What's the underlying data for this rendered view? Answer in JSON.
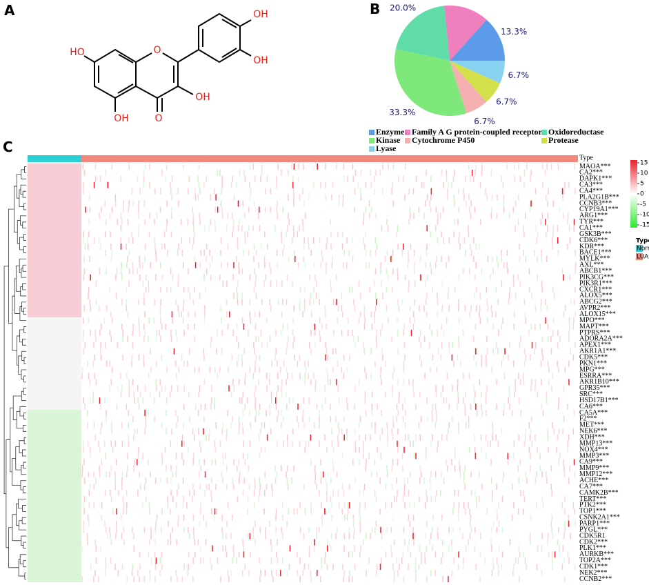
{
  "panels": [
    "A",
    "B",
    "C"
  ],
  "structure": {
    "atoms": [
      "HO",
      "OH",
      "O",
      "OH",
      "O",
      "OH",
      "OH"
    ]
  },
  "chart_data": {
    "type": "pie",
    "categories": [
      "Enzyme",
      "Family A G protein-coupled receptor",
      "Oxidoreductase",
      "Kinase",
      "Cytochrome P450",
      "Protease",
      "Lyase"
    ],
    "values": [
      13.3,
      13.3,
      20.0,
      33.3,
      6.7,
      6.7,
      6.7
    ],
    "value_labels": [
      "13.3%",
      "13.3%",
      "20.0%",
      "33.3%",
      "6.7%",
      "6.7%",
      "6.7%"
    ],
    "colors": [
      "#5b9bea",
      "#ef7fbf",
      "#5fdca8",
      "#7fe87a",
      "#f4b0b0",
      "#d4e04a",
      "#87d2f0"
    ]
  },
  "heatmap": {
    "annotation_label": "Type",
    "rows": [
      "MAOA***",
      "CA2***",
      "DAPK1***",
      "CA3***",
      "CA4***",
      "PLA2G1B***",
      "CCNB3***",
      "CYP19A1***",
      "ARG1***",
      "TYR***",
      "CA1***",
      "GSK3B***",
      "CDK6***",
      "KDR***",
      "BACE1***",
      "MYLK***",
      "AXL***",
      "ABCB1***",
      "PIK3CG***",
      "PIK3R1***",
      "CXCR1***",
      "ALOX5***",
      "ABCG2***",
      "AVPR2***",
      "ALOX15***",
      "MPO***",
      "MAPT***",
      "PTPRS***",
      "ADORA2A***",
      "APEX1***",
      "AKR1A1***",
      "CDK5***",
      "PKN1***",
      "MPG***",
      "ESRRA***",
      "AKR1B10***",
      "GPR35***",
      "SRC***",
      "HSD17B1***",
      "CA6***",
      "CA5A***",
      "F2***",
      "MET***",
      "NEK6***",
      "XDH***",
      "MMP13***",
      "NOX4***",
      "MMP3***",
      "CA9***",
      "MMP9***",
      "MMP12***",
      "ACHE***",
      "CA7***",
      "CAMK2B***",
      "TERT***",
      "PTK2***",
      "TOP1***",
      "CSNK2A1***",
      "PARP1***",
      "PYGL***",
      "CDK5R1",
      "CDK2***",
      "PLK1***",
      "AURKB***",
      "TOP2A***",
      "CDK1***",
      "NEK2***",
      "CCNB2***"
    ],
    "colorbar_ticks": [
      15,
      10,
      5,
      0,
      -5,
      -10,
      -15
    ],
    "legend_title": "Type",
    "groups": [
      {
        "name": "Normal",
        "color": "#2ccfd6"
      },
      {
        "name": "LUAD",
        "color": "#f2887c"
      }
    ]
  }
}
